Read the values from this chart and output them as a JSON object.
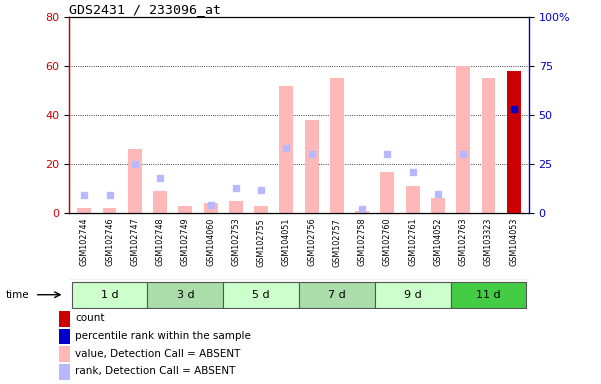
{
  "title": "GDS2431 / 233096_at",
  "samples": [
    "GSM102744",
    "GSM102746",
    "GSM102747",
    "GSM102748",
    "GSM102749",
    "GSM104060",
    "GSM102753",
    "GSM102755",
    "GSM104051",
    "GSM102756",
    "GSM102757",
    "GSM102758",
    "GSM102760",
    "GSM102761",
    "GSM104052",
    "GSM102763",
    "GSM103323",
    "GSM104053"
  ],
  "time_groups": [
    {
      "label": "1 d",
      "start": 0,
      "end": 3
    },
    {
      "label": "3 d",
      "start": 3,
      "end": 6
    },
    {
      "label": "5 d",
      "start": 6,
      "end": 9
    },
    {
      "label": "7 d",
      "start": 9,
      "end": 12
    },
    {
      "label": "9 d",
      "start": 12,
      "end": 15
    },
    {
      "label": "11 d",
      "start": 15,
      "end": 18
    }
  ],
  "group_colors": [
    "#ccffcc",
    "#aaddaa",
    "#ccffcc",
    "#aaddaa",
    "#ccffcc",
    "#44cc44"
  ],
  "pink_bar_values": [
    2,
    2,
    26,
    9,
    3,
    4,
    5,
    3,
    52,
    38,
    55,
    1,
    17,
    11,
    6,
    60,
    55,
    58
  ],
  "blue_sq_values": [
    9,
    9,
    25,
    18,
    0,
    4,
    13,
    12,
    33,
    30,
    0,
    2,
    30,
    21,
    10,
    30,
    0,
    53
  ],
  "count_bar_index": 17,
  "count_bar_value": 58,
  "percentile_index": 17,
  "percentile_value": 53,
  "ylim_left": [
    0,
    80
  ],
  "ylim_right": [
    0,
    100
  ],
  "yticks_left": [
    0,
    20,
    40,
    60,
    80
  ],
  "yticks_right": [
    0,
    25,
    50,
    75,
    100
  ],
  "ytick_labels_right": [
    "0",
    "25",
    "50",
    "75",
    "100%"
  ],
  "grid_values": [
    20,
    40,
    60
  ],
  "left_axis_color": "#cc0000",
  "right_axis_color": "#0000cc",
  "pink_bar_color": "#ffb8b8",
  "blue_sq_color": "#b8b8ff",
  "count_bar_color": "#cc0000",
  "percentile_color": "#0000cc",
  "sample_bg_color": "#d8d8d8",
  "legend_items": [
    {
      "color": "#cc0000",
      "label": "count"
    },
    {
      "color": "#0000cc",
      "label": "percentile rank within the sample"
    },
    {
      "color": "#ffb8b8",
      "label": "value, Detection Call = ABSENT"
    },
    {
      "color": "#b8b8ff",
      "label": "rank, Detection Call = ABSENT"
    }
  ]
}
